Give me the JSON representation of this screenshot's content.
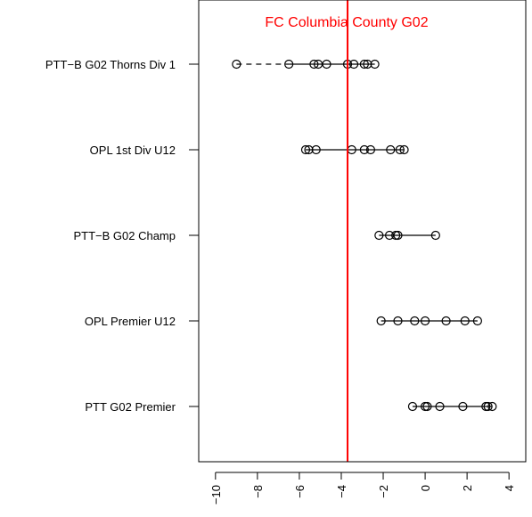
{
  "chart_data": {
    "type": "scatter",
    "title": "FC Columbia County G02",
    "title_color": "#ff0000",
    "reference_line": {
      "x": -3.7,
      "color": "#ff0000"
    },
    "xlim": [
      -10.8,
      4.8
    ],
    "xticks": [
      -10,
      -8,
      -6,
      -4,
      -2,
      0,
      2,
      4
    ],
    "xtick_labels": [
      "−10",
      "−8",
      "−6",
      "−4",
      "−2",
      "0",
      "2",
      "4"
    ],
    "xlabel": "",
    "ylabel": "",
    "grid": false,
    "legend": "none",
    "series": [
      {
        "category": "PTT−B G02 Thorns Div 1",
        "range": [
          -9.0,
          -2.4
        ],
        "dashed_to": -6.5,
        "values": [
          -9.0,
          -6.5,
          -5.3,
          -5.1,
          -4.7,
          -3.7,
          -3.4,
          -2.9,
          -2.75,
          -2.4
        ]
      },
      {
        "category": "OPL 1st Div U12",
        "range": [
          -5.7,
          -1.0
        ],
        "dashed_to": null,
        "values": [
          -5.7,
          -5.55,
          -5.2,
          -3.5,
          -2.9,
          -2.6,
          -1.65,
          -1.2,
          -1.0
        ]
      },
      {
        "category": "PTT−B G02 Champ",
        "range": [
          -2.2,
          0.5
        ],
        "dashed_to": null,
        "values": [
          -2.2,
          -1.7,
          -1.4,
          -1.3,
          0.5
        ]
      },
      {
        "category": "OPL Premier U12",
        "range": [
          -2.1,
          2.5
        ],
        "dashed_to": null,
        "values": [
          -2.1,
          -1.3,
          -0.5,
          0.0,
          1.0,
          1.9,
          2.5
        ]
      },
      {
        "category": "PTT G02 Premier",
        "range": [
          -0.6,
          3.2
        ],
        "dashed_to": null,
        "values": [
          -0.6,
          0.0,
          0.1,
          0.7,
          1.8,
          2.9,
          3.0,
          3.2
        ]
      }
    ]
  }
}
